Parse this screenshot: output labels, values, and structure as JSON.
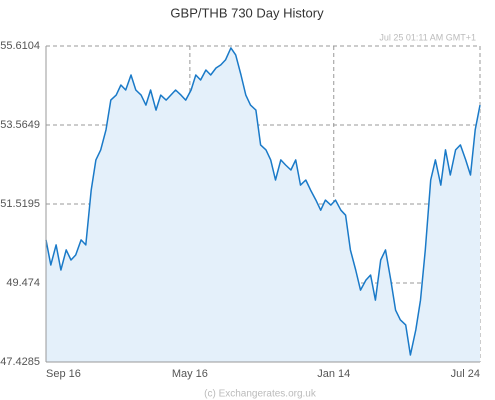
{
  "chart_data": {
    "type": "line",
    "title": "GBP/THB  730 Day History",
    "annotation": "Jul 25  01:11 AM GMT+1",
    "footer": "(c) Exchangerates.org.uk",
    "series": [
      {
        "name": "GBP/THB",
        "color": "#1a7ac8",
        "fill": "#e4f0fa",
        "x": [
          0,
          8,
          17,
          25,
          34,
          42,
          50,
          59,
          67,
          76,
          84,
          92,
          101,
          109,
          118,
          126,
          134,
          143,
          151,
          160,
          168,
          176,
          185,
          193,
          202,
          210,
          218,
          227,
          235,
          244,
          252,
          260,
          269,
          277,
          286,
          294,
          302,
          311,
          319,
          328,
          336,
          344,
          353,
          361,
          370,
          378,
          386,
          395,
          403,
          412,
          420,
          428,
          437,
          445,
          454,
          462,
          470,
          479,
          487,
          496,
          504,
          512,
          521,
          529,
          538,
          546,
          554,
          563,
          571,
          580,
          588,
          596,
          605,
          613,
          622,
          630,
          638,
          647,
          655,
          664,
          672,
          680,
          689,
          697,
          706,
          714,
          722,
          730
        ],
        "values": [
          50.59,
          49.94,
          50.46,
          49.81,
          50.33,
          50.07,
          50.2,
          50.59,
          50.46,
          51.88,
          52.66,
          52.92,
          53.44,
          54.21,
          54.34,
          54.6,
          54.47,
          54.86,
          54.47,
          54.34,
          54.08,
          54.47,
          53.95,
          54.34,
          54.21,
          54.34,
          54.47,
          54.34,
          54.21,
          54.47,
          54.86,
          54.73,
          54.99,
          54.86,
          55.04,
          55.12,
          55.25,
          55.56,
          55.38,
          54.86,
          54.34,
          54.08,
          53.95,
          53.05,
          52.92,
          52.66,
          52.14,
          52.66,
          52.53,
          52.4,
          52.66,
          52.01,
          52.14,
          51.88,
          51.62,
          51.36,
          51.62,
          51.49,
          51.62,
          51.36,
          51.23,
          50.33,
          49.81,
          49.29,
          49.55,
          49.68,
          49.03,
          50.07,
          50.33,
          49.55,
          48.77,
          48.52,
          48.39,
          47.61,
          48.26,
          49.03,
          50.33,
          52.14,
          52.66,
          52.01,
          52.92,
          52.27,
          52.92,
          53.05,
          52.66,
          52.27,
          53.44,
          54.08
        ]
      }
    ],
    "xlim": [
      0,
      730
    ],
    "xticks": [
      {
        "value": 0,
        "label": "Sep 16"
      },
      {
        "value": 242,
        "label": "May 16"
      },
      {
        "value": 484,
        "label": "Jan 14"
      },
      {
        "value": 730,
        "label": "Jul 24"
      }
    ],
    "ylim": [
      47.4285,
      55.6104
    ],
    "yticks": [
      47.4285,
      49.474,
      51.5195,
      53.5649,
      55.6104
    ],
    "grid": true
  }
}
